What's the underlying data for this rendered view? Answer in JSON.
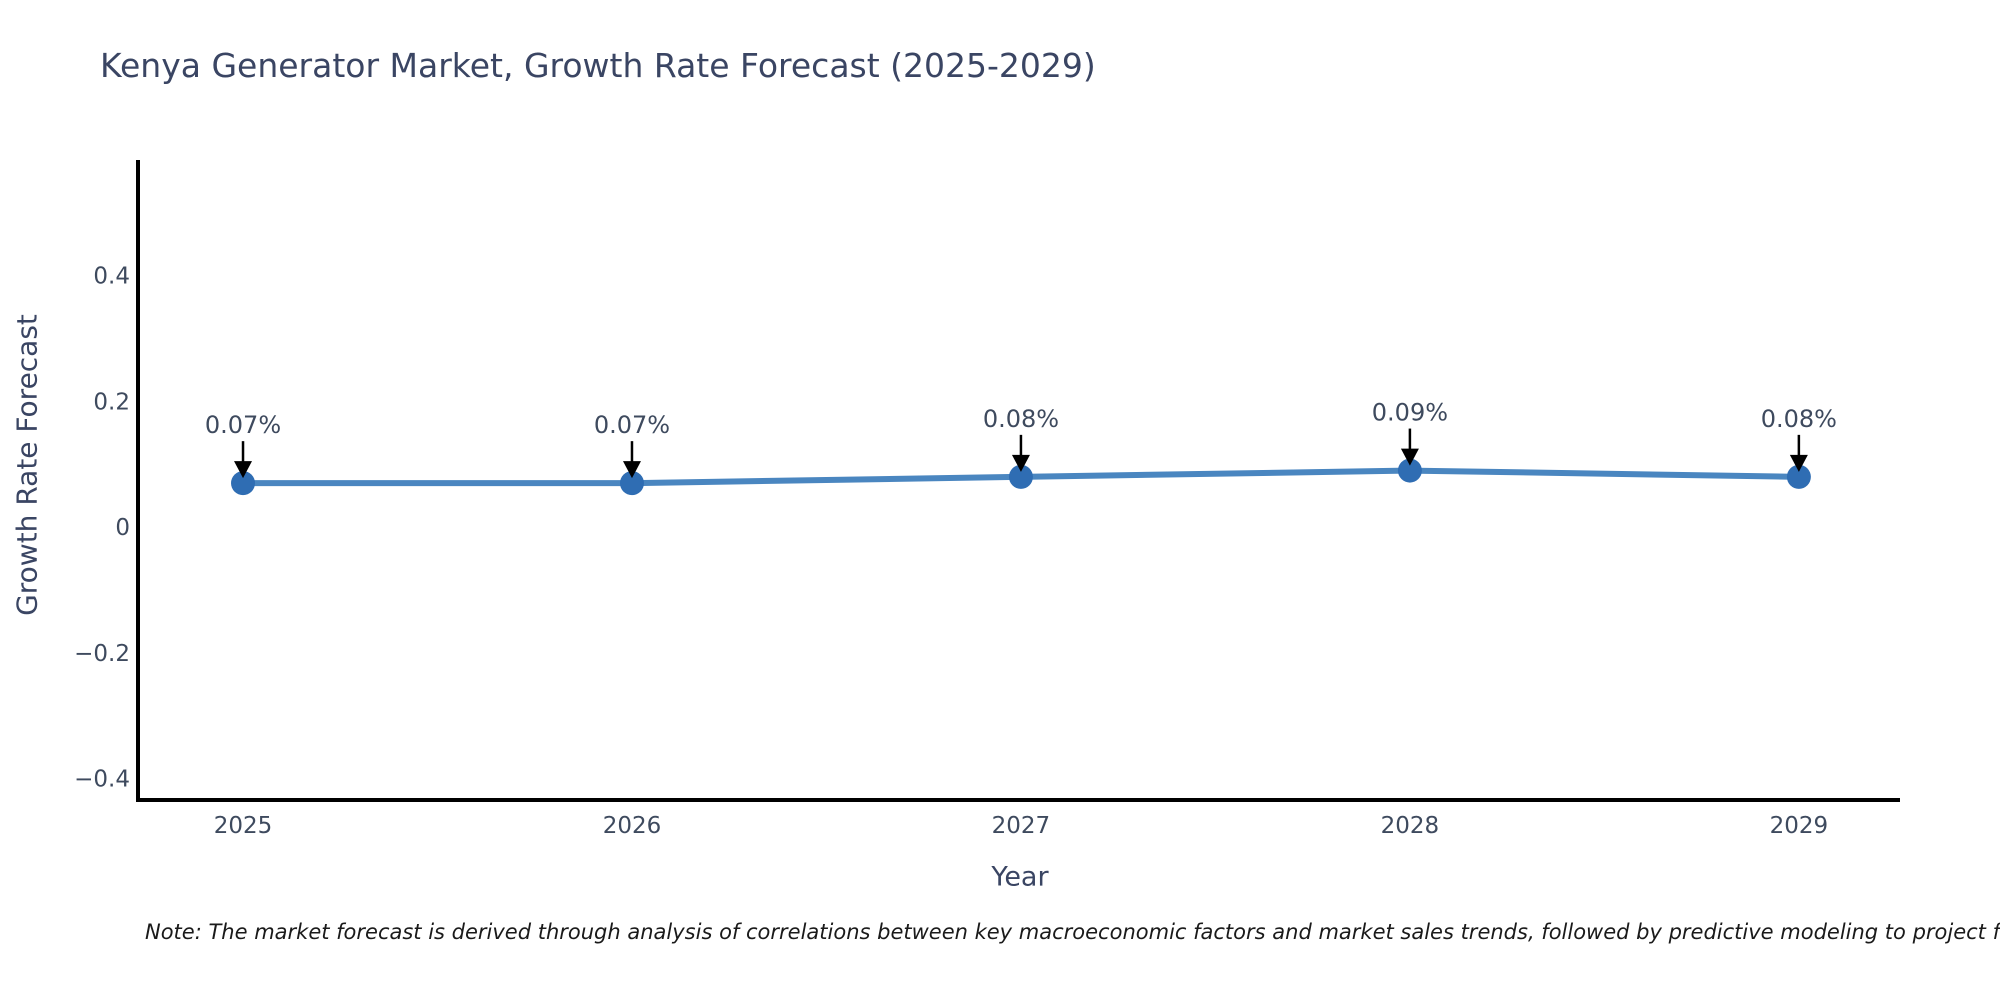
{
  "chart": {
    "title": "Kenya Generator Market, Growth Rate Forecast (2025-2029)",
    "xlabel": "Year",
    "ylabel": "Growth Rate Forecast",
    "note": "Note: The market forecast is derived through analysis of correlations between key macroeconomic factors and market sales trends, followed by predictive modeling to project future sa"
  },
  "chart_data": {
    "type": "line",
    "title": "Kenya Generator Market, Growth Rate Forecast (2025-2029)",
    "xlabel": "Year",
    "ylabel": "Growth Rate Forecast",
    "categories": [
      2025,
      2026,
      2027,
      2028,
      2029
    ],
    "series": [
      {
        "name": "Growth Rate Forecast",
        "values": [
          0.07,
          0.07,
          0.08,
          0.09,
          0.08
        ]
      }
    ],
    "data_labels": [
      "0.07%",
      "0.07%",
      "0.08%",
      "0.09%",
      "0.08%"
    ],
    "x_tick_labels": [
      "2025",
      "2026",
      "2027",
      "2028",
      "2029"
    ],
    "y_ticks": [
      0.4,
      0.2,
      0,
      -0.2,
      -0.4
    ],
    "y_tick_labels": [
      "0.4",
      "0.2",
      "0",
      "−0.2",
      "−0.4"
    ],
    "xlim": [
      2024.73,
      2029.26
    ],
    "ylim": [
      -0.434,
      0.584
    ],
    "grid": false,
    "legend": "none",
    "annotation_arrows": "down-arrow-to-point",
    "colors": {
      "line": "#4a86c0",
      "marker": "#2f6db3",
      "arrow": "#000000",
      "spine": "#000000",
      "title_text": "#3a4563",
      "tick_text": "#3e4a5e",
      "note_text": "#1a1a1a"
    }
  }
}
